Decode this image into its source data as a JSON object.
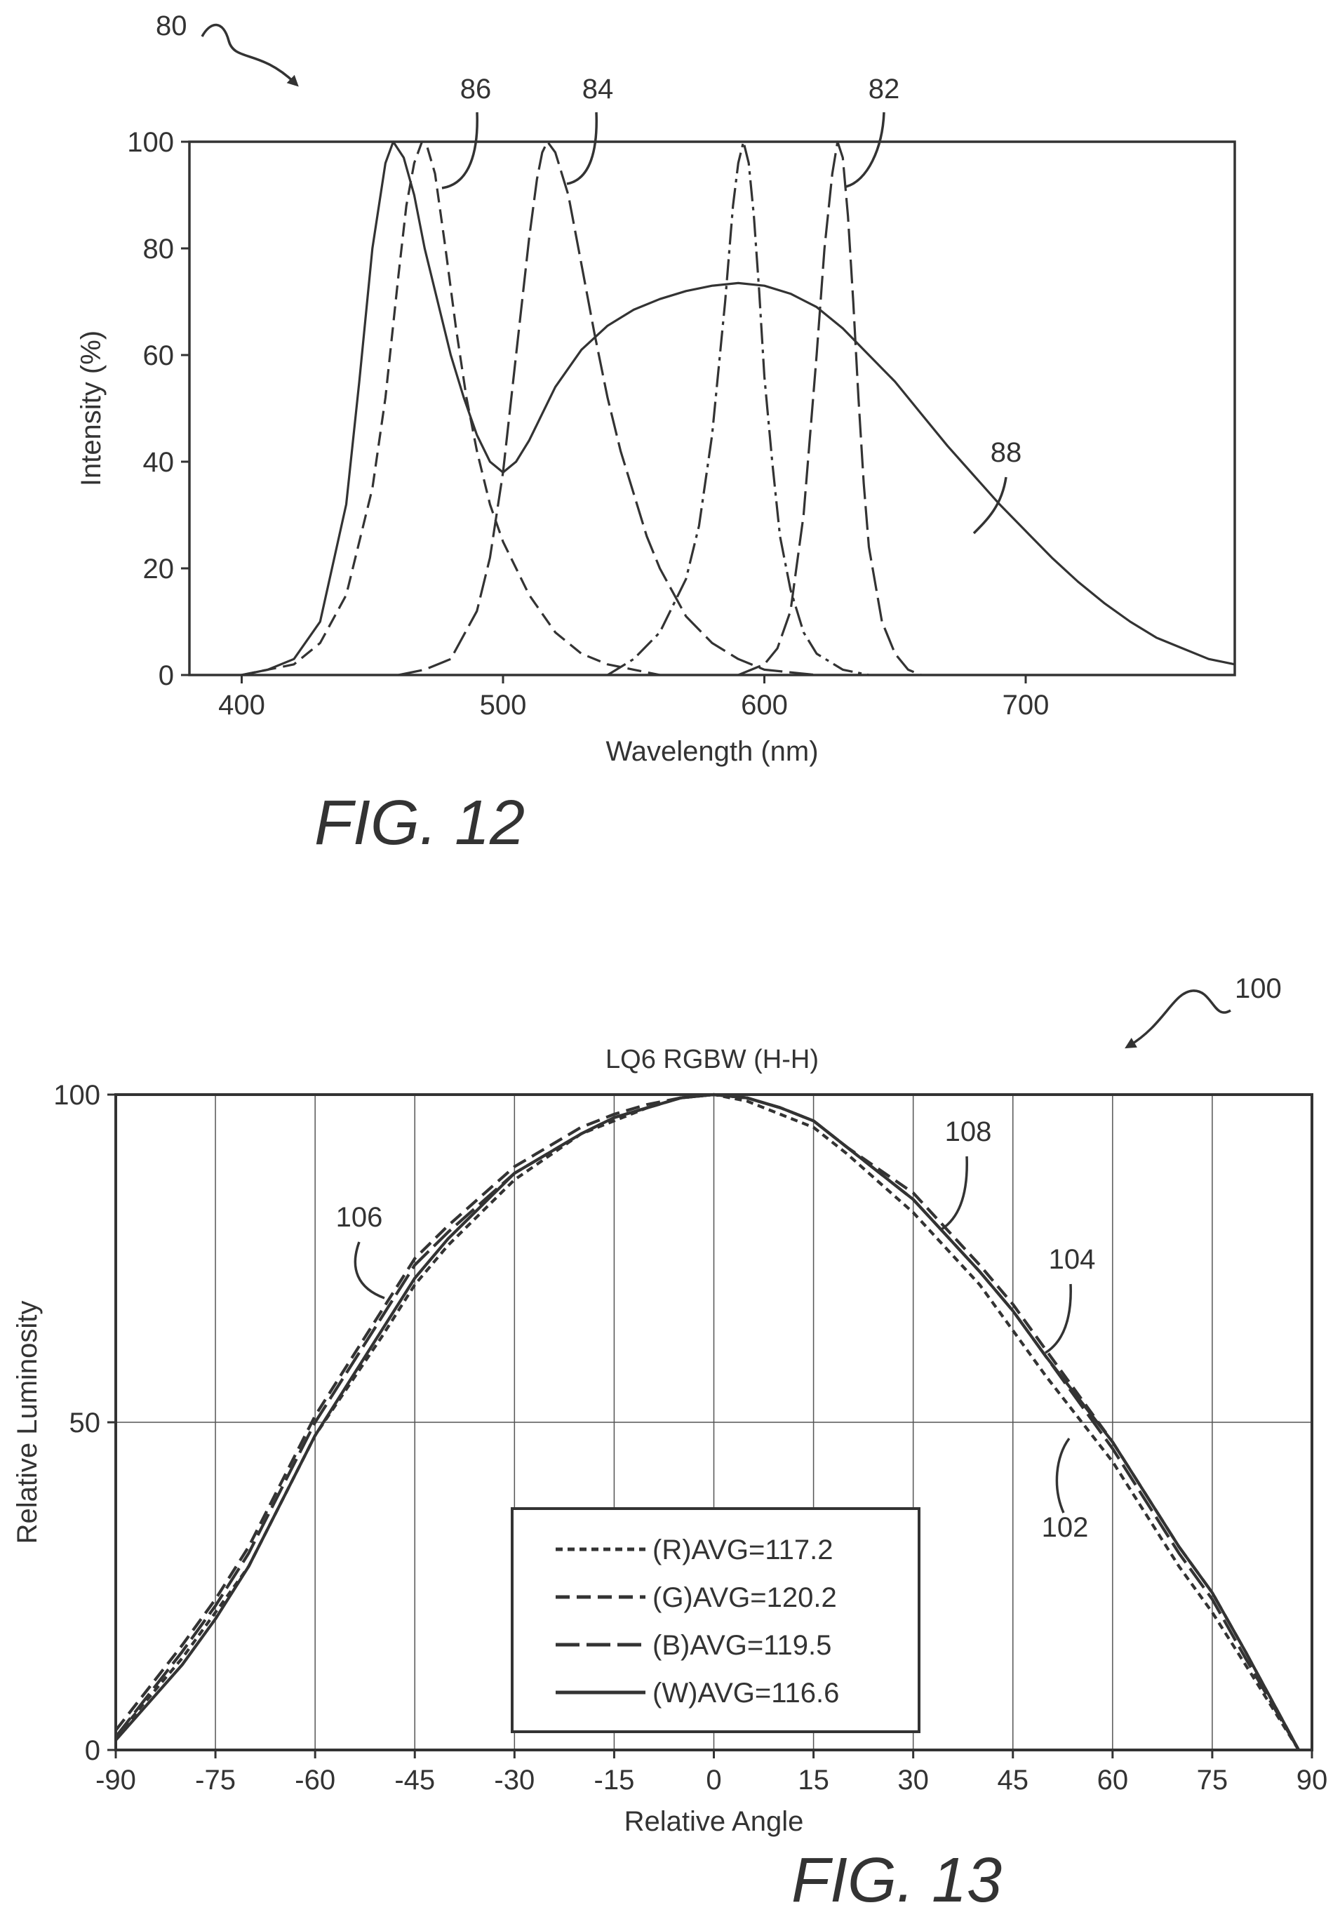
{
  "figures": [
    {
      "caption": "FIG. 12",
      "ref_label": "80"
    },
    {
      "caption": "FIG. 13",
      "ref_label": "100"
    }
  ],
  "chart_data": [
    {
      "type": "line",
      "title": "",
      "xlabel": "Wavelength (nm)",
      "ylabel": "Intensity (%)",
      "xlim": [
        380,
        780
      ],
      "ylim": [
        0,
        100
      ],
      "x_ticks": [
        400,
        500,
        600,
        700
      ],
      "y_ticks": [
        0,
        20,
        40,
        60,
        80,
        100
      ],
      "grid": false,
      "series": [
        {
          "ref": "88",
          "style": "solid",
          "x": [
            400,
            410,
            420,
            430,
            440,
            445,
            450,
            455,
            458,
            462,
            466,
            470,
            475,
            480,
            485,
            490,
            495,
            500,
            505,
            510,
            515,
            520,
            530,
            540,
            550,
            560,
            570,
            580,
            590,
            600,
            610,
            620,
            630,
            640,
            650,
            660,
            670,
            680,
            690,
            700,
            710,
            720,
            730,
            740,
            750,
            760,
            770,
            780
          ],
          "y": [
            0,
            1,
            3,
            10,
            32,
            55,
            80,
            96,
            100,
            97,
            90,
            80,
            70,
            60,
            52,
            45,
            40,
            38,
            40,
            44,
            49,
            54,
            61,
            65.5,
            68.5,
            70.5,
            72,
            73,
            73.5,
            73,
            71.5,
            69,
            65,
            60,
            55,
            49,
            43,
            37.5,
            32,
            27,
            22,
            17.5,
            13.5,
            10,
            7,
            5,
            3,
            2
          ]
        },
        {
          "ref": "86",
          "style": "dashed",
          "x": [
            400,
            420,
            430,
            440,
            450,
            455,
            460,
            463,
            466,
            469,
            471,
            474,
            478,
            482,
            486,
            490,
            495,
            500,
            510,
            520,
            530,
            540,
            550,
            560
          ],
          "y": [
            0,
            2,
            6,
            15,
            35,
            52,
            75,
            88,
            96,
            100,
            99,
            94,
            80,
            65,
            52,
            42,
            32,
            25,
            15,
            8,
            4,
            2,
            1,
            0
          ]
        },
        {
          "ref": "84",
          "style": "long-dash",
          "x": [
            460,
            470,
            480,
            490,
            495,
            500,
            505,
            510,
            513,
            515,
            517,
            520,
            525,
            530,
            535,
            540,
            545,
            550,
            555,
            560,
            570,
            580,
            590,
            600,
            610,
            620
          ],
          "y": [
            0,
            1,
            3,
            12,
            22,
            38,
            60,
            82,
            93,
            98,
            100,
            98,
            90,
            77,
            64,
            52,
            42,
            34,
            26,
            20,
            11,
            6,
            3,
            1,
            0.5,
            0
          ]
        },
        {
          "ref": "",
          "style": "dash-dot",
          "x": [
            540,
            550,
            560,
            570,
            575,
            580,
            585,
            588,
            590,
            592,
            594,
            596,
            598,
            600,
            603,
            606,
            610,
            615,
            620,
            630,
            640
          ],
          "y": [
            0,
            3,
            8,
            18,
            28,
            45,
            70,
            88,
            96,
            100,
            96,
            86,
            72,
            56,
            40,
            26,
            16,
            8,
            4,
            1,
            0
          ]
        },
        {
          "ref": "82",
          "style": "long-dash",
          "x": [
            590,
            600,
            605,
            610,
            615,
            620,
            623,
            626,
            628,
            630,
            632,
            634,
            636,
            638,
            640,
            645,
            650,
            655,
            660
          ],
          "y": [
            0,
            2,
            5,
            12,
            30,
            60,
            80,
            94,
            100,
            97,
            86,
            70,
            52,
            36,
            24,
            10,
            4,
            1,
            0
          ]
        }
      ]
    },
    {
      "type": "line",
      "title": "LQ6 RGBW (H-H)",
      "xlabel": "Relative Angle",
      "ylabel": "Relative Luminosity",
      "xlim": [
        -90,
        90
      ],
      "ylim": [
        0,
        100
      ],
      "x_ticks": [
        -90,
        -75,
        -60,
        -45,
        -30,
        -15,
        0,
        15,
        30,
        45,
        60,
        75,
        90
      ],
      "y_ticks": [
        0,
        50,
        100
      ],
      "grid": true,
      "legend": "bottom-center",
      "series": [
        {
          "name": "(R)AVG=117.2",
          "style": "short-dash",
          "ref": "102",
          "x": [
            -90,
            -80,
            -75,
            -70,
            -60,
            -50,
            -45,
            -40,
            -30,
            -20,
            -15,
            -10,
            -5,
            0,
            5,
            10,
            15,
            20,
            30,
            40,
            45,
            50,
            60,
            70,
            75,
            80,
            88
          ],
          "y": [
            2,
            14,
            21,
            28,
            48,
            63,
            71,
            77,
            87,
            94,
            96,
            98,
            99.5,
            100,
            99,
            97,
            95,
            91,
            82,
            71,
            64,
            57,
            44,
            28,
            21,
            13,
            0
          ]
        },
        {
          "name": "(G)AVG=120.2",
          "style": "dashed",
          "ref": "104",
          "x": [
            -90,
            -80,
            -75,
            -70,
            -60,
            -50,
            -45,
            -40,
            -30,
            -20,
            -15,
            -10,
            -5,
            0,
            5,
            10,
            15,
            20,
            30,
            40,
            45,
            50,
            60,
            70,
            75,
            80,
            88
          ],
          "y": [
            3,
            16,
            23,
            31,
            51,
            67,
            75,
            80,
            89,
            95,
            97,
            98.5,
            99.5,
            100,
            99.5,
            98,
            96,
            92,
            85,
            74,
            68,
            61,
            47,
            31,
            24,
            15,
            0
          ]
        },
        {
          "name": "(B)AVG=119.5",
          "style": "long-dash",
          "ref": "106",
          "x": [
            -90,
            -80,
            -75,
            -70,
            -60,
            -50,
            -45,
            -40,
            -30,
            -20,
            -15,
            -10,
            -5,
            0,
            5,
            10,
            15,
            20,
            30,
            40,
            45,
            50,
            60,
            70,
            75,
            80,
            88
          ],
          "y": [
            2,
            15,
            22,
            30,
            50,
            66,
            74,
            79,
            88,
            94,
            96.5,
            98,
            99.5,
            100,
            99.5,
            98,
            96,
            92,
            84,
            73,
            67,
            60,
            46,
            30,
            23,
            14,
            0
          ]
        },
        {
          "name": "(W)AVG=116.6",
          "style": "solid",
          "ref": "108",
          "x": [
            -90,
            -80,
            -75,
            -70,
            -60,
            -50,
            -45,
            -40,
            -30,
            -20,
            -15,
            -10,
            -5,
            0,
            5,
            10,
            15,
            20,
            30,
            40,
            45,
            50,
            60,
            70,
            75,
            80,
            88
          ],
          "y": [
            1.5,
            13,
            20,
            28,
            48,
            64,
            72,
            78,
            88,
            94,
            96.5,
            98,
            99.5,
            100,
            99.5,
            98,
            96,
            92,
            84,
            73,
            67,
            60,
            47,
            31,
            24,
            15,
            0
          ]
        }
      ]
    }
  ]
}
